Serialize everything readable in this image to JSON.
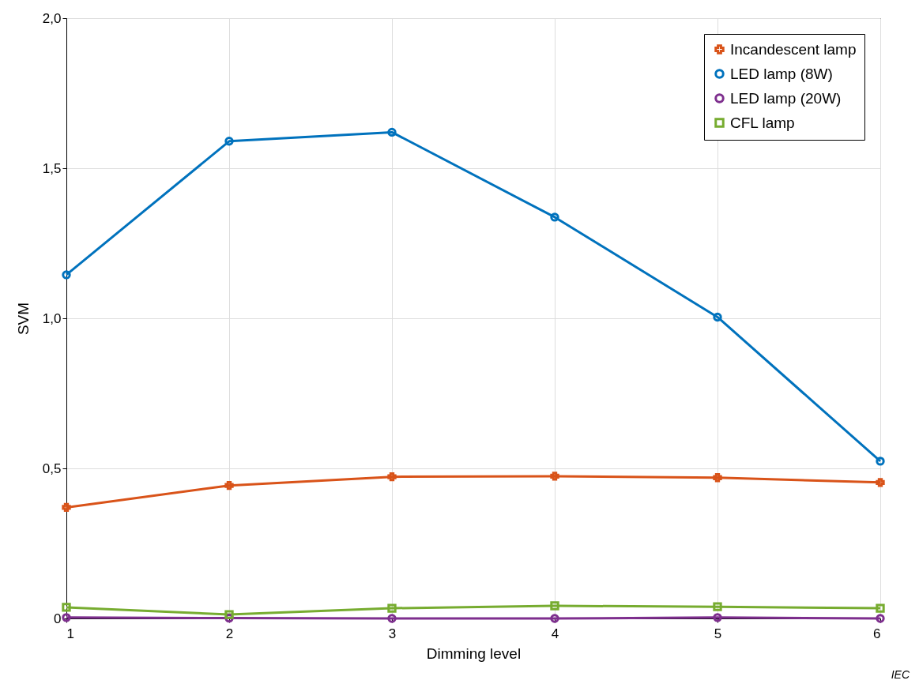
{
  "chart_data": {
    "type": "line",
    "xlabel": "Dimming level",
    "ylabel": "SVM",
    "x": [
      1,
      2,
      3,
      4,
      5,
      6
    ],
    "xlim": [
      1,
      6
    ],
    "xticks": [
      1,
      2,
      3,
      4,
      5,
      6
    ],
    "ylim": [
      0,
      2
    ],
    "yticks": [
      0,
      {
        "value": 0.5,
        "label": "0,5"
      },
      {
        "value": 1,
        "label": "1,0"
      },
      {
        "value": 1.5,
        "label": "1,5"
      },
      {
        "value": 2,
        "label": "2,0"
      }
    ],
    "grid": true,
    "legend": "top right",
    "line_style": "solid",
    "series": [
      {
        "name": "Incandescent lamp",
        "color": "#d95319",
        "marker": "cross",
        "values": [
          0.37,
          0.443,
          0.472,
          0.474,
          0.469,
          0.453
        ]
      },
      {
        "name": "LED lamp (8W)",
        "color": "#0072bd",
        "marker": "circle",
        "values": [
          1.145,
          1.59,
          1.62,
          1.337,
          1.004,
          0.524
        ]
      },
      {
        "name": "LED lamp (20W)",
        "color": "#7e2f8e",
        "marker": "circle",
        "values": [
          0.003,
          0.001,
          0,
          0,
          0.003,
          0
        ]
      },
      {
        "name": "CFL lamp",
        "color": "#77ac30",
        "marker": "square",
        "values": [
          0.037,
          0.013,
          0.034,
          0.042,
          0.039,
          0.034
        ]
      }
    ],
    "annotations": [
      "IEC"
    ]
  }
}
